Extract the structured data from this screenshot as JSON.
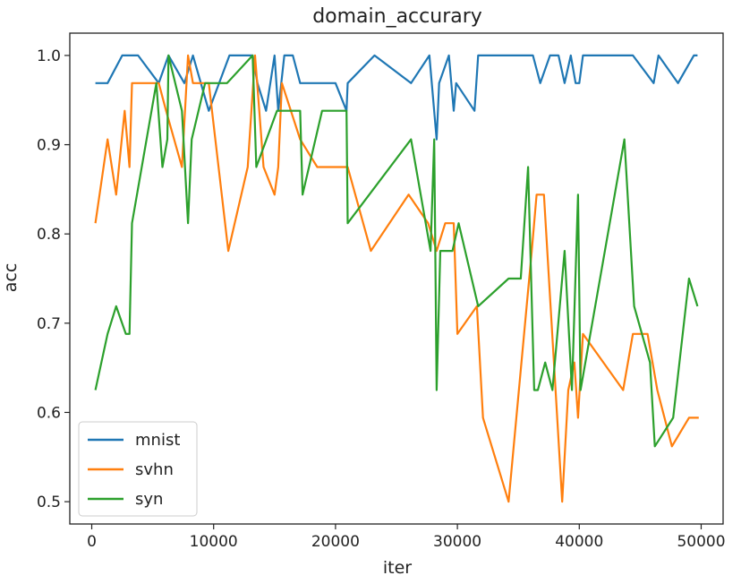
{
  "chart_data": {
    "type": "line",
    "title": "domain_accurary",
    "xlabel": "iter",
    "ylabel": "acc",
    "xlim": [
      -1800,
      51800
    ],
    "ylim": [
      0.475,
      1.025
    ],
    "xticks": [
      0,
      10000,
      20000,
      30000,
      40000,
      50000
    ],
    "yticks": [
      0.5,
      0.6,
      0.7,
      0.8,
      0.9,
      1.0
    ],
    "ytick_labels": [
      "0.5",
      "0.6",
      "0.7",
      "0.8",
      "0.9",
      "1.0"
    ],
    "grid": false,
    "legend": "lower-left",
    "series": [
      {
        "name": "mnist",
        "color": "#1f77b4",
        "x": [
          300,
          1300,
          2500,
          3800,
          5500,
          6300,
          7600,
          8300,
          9600,
          11300,
          13200,
          13600,
          14300,
          15000,
          15300,
          15800,
          16500,
          17100,
          18500,
          20000,
          20900,
          21000,
          23200,
          26200,
          27700,
          28300,
          28500,
          29300,
          29700,
          29900,
          31400,
          31700,
          36200,
          36800,
          37600,
          38300,
          38800,
          39300,
          39700,
          40000,
          40300,
          44400,
          46100,
          46500,
          48100,
          49400,
          49700
        ],
        "y": [
          0.969,
          0.969,
          1.0,
          1.0,
          0.969,
          1.0,
          0.969,
          1.0,
          0.938,
          1.0,
          1.0,
          0.969,
          0.938,
          1.0,
          0.938,
          1.0,
          1.0,
          0.969,
          0.969,
          0.969,
          0.938,
          0.969,
          1.0,
          0.969,
          1.0,
          0.906,
          0.969,
          1.0,
          0.938,
          0.969,
          0.938,
          1.0,
          1.0,
          0.969,
          1.0,
          1.0,
          0.969,
          1.0,
          0.969,
          0.969,
          1.0,
          1.0,
          0.969,
          1.0,
          0.969,
          1.0,
          1.0
        ]
      },
      {
        "name": "svhn",
        "color": "#ff7f0e",
        "x": [
          300,
          1300,
          2000,
          2700,
          3100,
          3300,
          5500,
          6100,
          7400,
          7900,
          8300,
          9600,
          11200,
          12800,
          13400,
          14100,
          15000,
          15300,
          15600,
          17100,
          18500,
          20600,
          21000,
          22900,
          26000,
          27600,
          28300,
          29000,
          29700,
          30000,
          31600,
          32100,
          34200,
          36100,
          36500,
          37100,
          38600,
          39100,
          39600,
          39900,
          40300,
          43600,
          44400,
          45600,
          46400,
          47600,
          49000,
          49800
        ],
        "y": [
          0.812,
          0.906,
          0.844,
          0.938,
          0.875,
          0.969,
          0.969,
          0.938,
          0.875,
          1.0,
          0.969,
          0.969,
          0.781,
          0.875,
          1.0,
          0.875,
          0.844,
          0.875,
          0.969,
          0.906,
          0.875,
          0.875,
          0.875,
          0.781,
          0.844,
          0.812,
          0.781,
          0.812,
          0.812,
          0.688,
          0.719,
          0.594,
          0.5,
          0.781,
          0.844,
          0.844,
          0.5,
          0.625,
          0.656,
          0.594,
          0.688,
          0.625,
          0.688,
          0.688,
          0.625,
          0.562,
          0.594,
          0.594
        ]
      },
      {
        "name": "syn",
        "color": "#2ca02c",
        "x": [
          300,
          1300,
          2000,
          2800,
          3100,
          3300,
          5300,
          5800,
          6200,
          6300,
          7400,
          7900,
          8200,
          9300,
          11100,
          13200,
          13500,
          15200,
          15700,
          17100,
          17300,
          18900,
          20900,
          21000,
          26200,
          27800,
          28100,
          28300,
          28600,
          29600,
          30100,
          31700,
          34200,
          35200,
          35800,
          36300,
          36600,
          37200,
          37800,
          38800,
          39400,
          39900,
          40100,
          43700,
          44500,
          45800,
          46200,
          47700,
          49000,
          49700
        ],
        "y": [
          0.625,
          0.688,
          0.719,
          0.688,
          0.688,
          0.812,
          0.969,
          0.875,
          0.906,
          1.0,
          0.938,
          0.812,
          0.906,
          0.969,
          0.969,
          1.0,
          0.875,
          0.938,
          0.938,
          0.938,
          0.844,
          0.938,
          0.938,
          0.812,
          0.906,
          0.781,
          0.906,
          0.625,
          0.781,
          0.781,
          0.812,
          0.719,
          0.75,
          0.75,
          0.875,
          0.625,
          0.625,
          0.656,
          0.625,
          0.781,
          0.625,
          0.844,
          0.625,
          0.906,
          0.719,
          0.656,
          0.562,
          0.594,
          0.75,
          0.719
        ]
      }
    ]
  }
}
